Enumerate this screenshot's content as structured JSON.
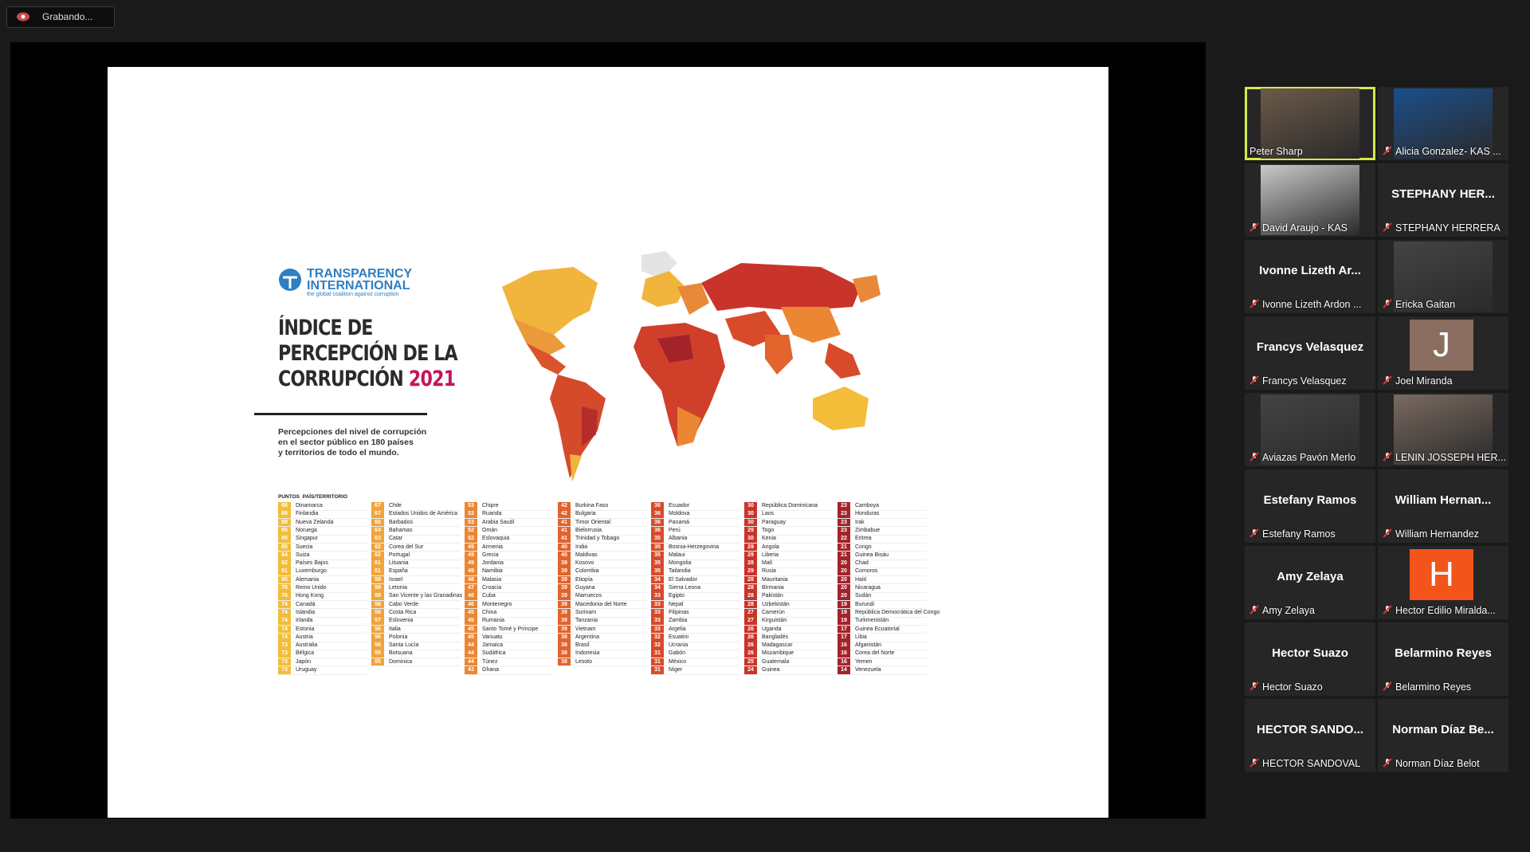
{
  "recording": {
    "label": "Grabando..."
  },
  "slide": {
    "org": {
      "name_line1": "TRANSPARENCY",
      "name_line2": "INTERNATIONAL",
      "tagline": "the global coalition against corruption"
    },
    "title_lines": [
      "ÍNDICE DE",
      "PERCEPCIÓN DE LA",
      "CORRUPCIÓN"
    ],
    "year": "2021",
    "subtitle_lines": [
      "Percepciones del nivel de corrupción",
      "en el sector público en 180 países",
      "y territorios de todo el mundo."
    ],
    "table": {
      "header": [
        "PUNTOS",
        "PAÍS/TERRITORIO"
      ],
      "columns": [
        {
          "color": "#f3bd3a",
          "rows": [
            [
              88,
              "Dinamarca"
            ],
            [
              88,
              "Finlandia"
            ],
            [
              88,
              "Nueva Zelanda"
            ],
            [
              85,
              "Noruega"
            ],
            [
              85,
              "Singapur"
            ],
            [
              85,
              "Suecia"
            ],
            [
              84,
              "Suiza"
            ],
            [
              82,
              "Países Bajos"
            ],
            [
              81,
              "Luxemburgo"
            ],
            [
              80,
              "Alemania"
            ],
            [
              78,
              "Reino Unido"
            ],
            [
              76,
              "Hong Kong"
            ],
            [
              74,
              "Canadá"
            ],
            [
              74,
              "Islandia"
            ],
            [
              74,
              "Irlanda"
            ],
            [
              74,
              "Estonia"
            ],
            [
              74,
              "Austria"
            ],
            [
              73,
              "Australia"
            ],
            [
              73,
              "Bélgica"
            ],
            [
              73,
              "Japón"
            ],
            [
              73,
              "Uruguay"
            ]
          ]
        },
        {
          "color": "#f0a43a",
          "rows": [
            [
              67,
              "Chile"
            ],
            [
              67,
              "Estados Unidos de América"
            ],
            [
              65,
              "Barbados"
            ],
            [
              64,
              "Bahamas"
            ],
            [
              63,
              "Catar"
            ],
            [
              62,
              "Corea del Sur"
            ],
            [
              62,
              "Portugal"
            ],
            [
              61,
              "Lituania"
            ],
            [
              61,
              "España"
            ],
            [
              59,
              "Israel"
            ],
            [
              59,
              "Letonia"
            ],
            [
              59,
              "San Vicente y las Granadinas"
            ],
            [
              58,
              "Cabo Verde"
            ],
            [
              58,
              "Costa Rica"
            ],
            [
              57,
              "Eslovenia"
            ],
            [
              56,
              "Italia"
            ],
            [
              56,
              "Polonia"
            ],
            [
              56,
              "Santa Lucía"
            ],
            [
              55,
              "Botsuana"
            ],
            [
              55,
              "Dominica"
            ]
          ]
        },
        {
          "color": "#eb8632",
          "rows": [
            [
              53,
              "Chipre"
            ],
            [
              53,
              "Ruanda"
            ],
            [
              53,
              "Arabia Saudí"
            ],
            [
              52,
              "Omán"
            ],
            [
              52,
              "Eslovaquia"
            ],
            [
              49,
              "Armenia"
            ],
            [
              49,
              "Grecia"
            ],
            [
              49,
              "Jordania"
            ],
            [
              49,
              "Namibia"
            ],
            [
              48,
              "Malasia"
            ],
            [
              47,
              "Croacia"
            ],
            [
              46,
              "Cuba"
            ],
            [
              46,
              "Montenegro"
            ],
            [
              45,
              "China"
            ],
            [
              45,
              "Rumania"
            ],
            [
              45,
              "Santo Tomé y Príncipe"
            ],
            [
              45,
              "Vanuatu"
            ],
            [
              44,
              "Jamaica"
            ],
            [
              44,
              "Sudáfrica"
            ],
            [
              44,
              "Túnez"
            ],
            [
              43,
              "Ghana"
            ]
          ]
        },
        {
          "color": "#e2632c",
          "rows": [
            [
              42,
              "Burkina Faso"
            ],
            [
              42,
              "Bulgaria"
            ],
            [
              41,
              "Timor Oriental"
            ],
            [
              41,
              "Bielorrusia"
            ],
            [
              41,
              "Trinidad y Tobago"
            ],
            [
              40,
              "India"
            ],
            [
              40,
              "Maldivas"
            ],
            [
              39,
              "Kosovo"
            ],
            [
              39,
              "Colombia"
            ],
            [
              39,
              "Etiopía"
            ],
            [
              39,
              "Guyana"
            ],
            [
              39,
              "Marruecos"
            ],
            [
              39,
              "Macedonia del Norte"
            ],
            [
              39,
              "Surinam"
            ],
            [
              39,
              "Tanzania"
            ],
            [
              39,
              "Vietnam"
            ],
            [
              38,
              "Argentina"
            ],
            [
              38,
              "Brasil"
            ],
            [
              38,
              "Indonesia"
            ],
            [
              38,
              "Lesoto"
            ]
          ]
        },
        {
          "color": "#d84b2a",
          "rows": [
            [
              36,
              "Ecuador"
            ],
            [
              36,
              "Moldova"
            ],
            [
              36,
              "Panamá"
            ],
            [
              36,
              "Perú"
            ],
            [
              35,
              "Albania"
            ],
            [
              35,
              "Bosnia-Herzegovina"
            ],
            [
              35,
              "Malaui"
            ],
            [
              35,
              "Mongolia"
            ],
            [
              35,
              "Tailandia"
            ],
            [
              34,
              "El Salvador"
            ],
            [
              34,
              "Sierra Leona"
            ],
            [
              33,
              "Egipto"
            ],
            [
              33,
              "Nepal"
            ],
            [
              33,
              "Filipinas"
            ],
            [
              33,
              "Zambia"
            ],
            [
              33,
              "Argelia"
            ],
            [
              32,
              "Esuatini"
            ],
            [
              32,
              "Ucrania"
            ],
            [
              31,
              "Gabón"
            ],
            [
              31,
              "México"
            ],
            [
              31,
              "Níger"
            ]
          ]
        },
        {
          "color": "#c9342a",
          "rows": [
            [
              30,
              "República Dominicana"
            ],
            [
              30,
              "Laos"
            ],
            [
              30,
              "Paraguay"
            ],
            [
              29,
              "Togo"
            ],
            [
              30,
              "Kenia"
            ],
            [
              29,
              "Angola"
            ],
            [
              29,
              "Liberia"
            ],
            [
              28,
              "Malí"
            ],
            [
              29,
              "Rusia"
            ],
            [
              28,
              "Mauritania"
            ],
            [
              28,
              "Birmania"
            ],
            [
              28,
              "Pakistán"
            ],
            [
              28,
              "Uzbekistán"
            ],
            [
              27,
              "Camerún"
            ],
            [
              27,
              "Kirguistán"
            ],
            [
              26,
              "Uganda"
            ],
            [
              26,
              "Bangladés"
            ],
            [
              26,
              "Madagascar"
            ],
            [
              26,
              "Mozambique"
            ],
            [
              25,
              "Guatemala"
            ],
            [
              24,
              "Guinea"
            ]
          ]
        },
        {
          "color": "#a3232a",
          "rows": [
            [
              23,
              "Camboya"
            ],
            [
              23,
              "Honduras"
            ],
            [
              23,
              "Irak"
            ],
            [
              23,
              "Zimbabue"
            ],
            [
              22,
              "Eritrea"
            ],
            [
              21,
              "Congo"
            ],
            [
              21,
              "Guinea Bisáu"
            ],
            [
              20,
              "Chad"
            ],
            [
              20,
              "Comoros"
            ],
            [
              20,
              "Haití"
            ],
            [
              20,
              "Nicaragua"
            ],
            [
              20,
              "Sudán"
            ],
            [
              19,
              "Burundi"
            ],
            [
              19,
              "República Democrática del Congo"
            ],
            [
              19,
              "Turkmenistán"
            ],
            [
              17,
              "Guinea Ecuatorial"
            ],
            [
              17,
              "Libia"
            ],
            [
              16,
              "Afganistán"
            ],
            [
              16,
              "Corea del Norte"
            ],
            [
              16,
              "Yemen"
            ],
            [
              14,
              "Venezuela"
            ]
          ]
        }
      ]
    }
  },
  "participants": [
    {
      "name": "Peter Sharp"
    },
    {
      "name": "Alicia Gonzalez- KAS ..."
    },
    {
      "name": "David Araujo - KAS"
    },
    {
      "name": "STEPHANY HERRERA",
      "heading": "STEPHANY HER..."
    },
    {
      "name": "Ivonne Lizeth Ardon ...",
      "heading": "Ivonne Lizeth Ar..."
    },
    {
      "name": "Ericka Gaitan"
    },
    {
      "name": "Francys Velasquez",
      "heading": "Francys Velasquez"
    },
    {
      "name": "Joel Miranda",
      "avatar": "J"
    },
    {
      "name": "Aviazas Pavón Merlo"
    },
    {
      "name": "LENIN JOSSEPH HER..."
    },
    {
      "name": "Estefany Ramos",
      "heading": "Estefany Ramos"
    },
    {
      "name": "William Hernandez",
      "heading": "William  Hernan..."
    },
    {
      "name": "Amy Zelaya",
      "heading": "Amy Zelaya"
    },
    {
      "name": "Hector Edilio Miralda...",
      "avatar": "H"
    },
    {
      "name": "Hector Suazo",
      "heading": "Hector Suazo"
    },
    {
      "name": "Belarmino Reyes",
      "heading": "Belarmino Reyes"
    },
    {
      "name": "HECTOR SANDOVAL",
      "heading": "HECTOR  SANDO..."
    },
    {
      "name": "Norman Díaz Belot",
      "heading": "Norman Díaz Be..."
    }
  ]
}
